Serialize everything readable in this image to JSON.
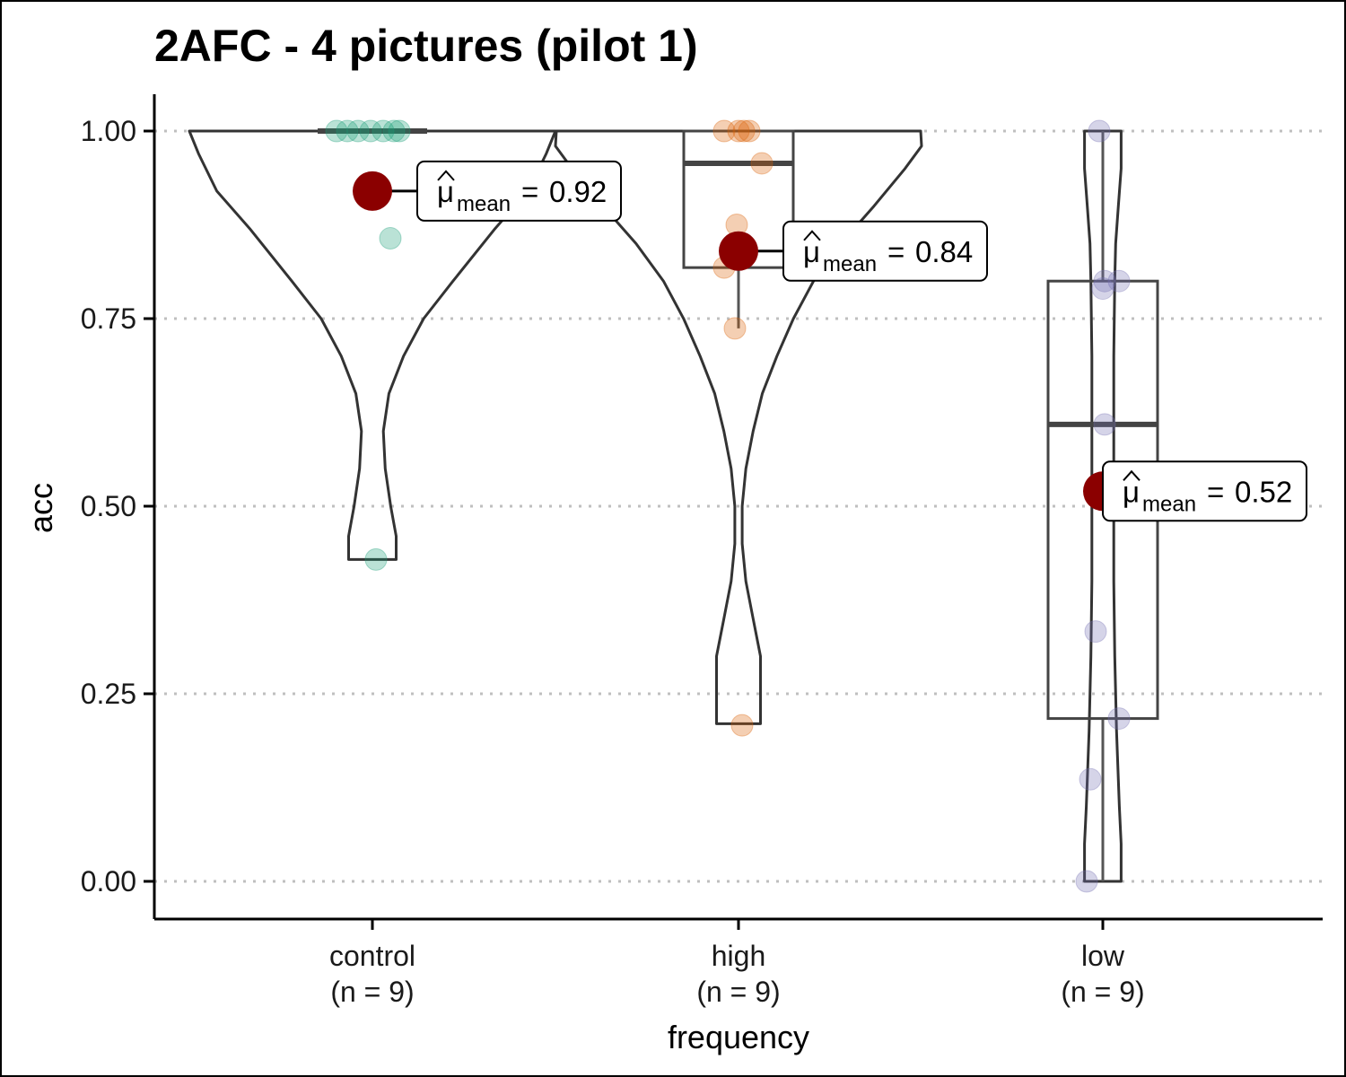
{
  "chart_data": {
    "type": "violin",
    "title": "2AFC - 4 pictures (pilot 1)",
    "xlabel": "frequency",
    "ylabel": "acc",
    "ylim": [
      0,
      1
    ],
    "yticks": [
      "0.00",
      "0.25",
      "0.50",
      "0.75",
      "1.00"
    ],
    "ytick_values": [
      0,
      0.25,
      0.5,
      0.75,
      1.0
    ],
    "grid": "horizontal-dotted",
    "groups": [
      {
        "name": "control",
        "n_label": "(n = 9)",
        "color": "#1b9e77",
        "points": [
          1.0,
          1.0,
          1.0,
          1.0,
          1.0,
          1.0,
          1.0,
          0.857,
          0.429
        ],
        "box": {
          "q1": 1.0,
          "median": 1.0,
          "q3": 1.0,
          "lower": 1.0,
          "upper": 1.0
        },
        "violin_range": [
          0.429,
          1.0
        ],
        "mean": 0.92,
        "mean_label": {
          "mu": "μ",
          "sub": "mean",
          "eq": "=",
          "value": "0.92"
        }
      },
      {
        "name": "high",
        "n_label": "(n = 9)",
        "color": "#d95f02",
        "points": [
          1.0,
          1.0,
          1.0,
          1.0,
          0.957,
          0.875,
          0.818,
          0.737,
          0.208
        ],
        "box": {
          "q1": 0.818,
          "median": 0.957,
          "q3": 1.0,
          "lower": 0.737,
          "upper": 1.0
        },
        "violin_range": [
          0.208,
          1.0
        ],
        "mean": 0.84,
        "mean_label": {
          "mu": "μ",
          "sub": "mean",
          "eq": "=",
          "value": "0.84"
        }
      },
      {
        "name": "low",
        "n_label": "(n = 9)",
        "color": "#7570b3",
        "points": [
          1.0,
          0.8,
          0.8,
          0.79,
          0.609,
          0.333,
          0.217,
          0.136,
          0.0
        ],
        "box": {
          "q1": 0.217,
          "median": 0.609,
          "q3": 0.8,
          "lower": 0.0,
          "upper": 1.0
        },
        "violin_range": [
          0.0,
          1.0
        ],
        "mean": 0.52,
        "mean_label": {
          "mu": "μ",
          "sub": "mean",
          "eq": "=",
          "value": "0.52"
        }
      }
    ],
    "mean_point_color": "#8b0000"
  }
}
